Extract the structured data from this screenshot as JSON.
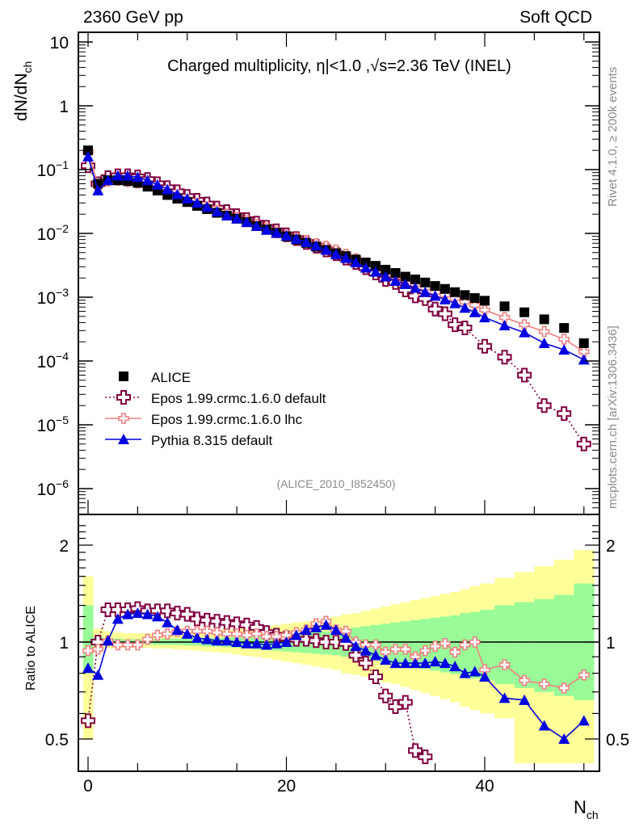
{
  "header": {
    "left": "2360 GeV pp",
    "right": "Soft QCD"
  },
  "side_labels": {
    "top": "Rivet 4.1.0, ≥ 200k events",
    "bottom": "mcplots.cern.ch [arXiv:1306.3436]"
  },
  "chart_data": [
    {
      "type": "scatter",
      "panel": "main",
      "title": "Charged multiplicity, |η|<1.0 ,√s=2.36 TeV (INEL)",
      "title_parts": {
        "pre": "Charged multiplicity, ",
        "eta": "η",
        "mid": "|<1.0 ,",
        "sqrt": "√",
        "post": "s=2.36 TeV (INEL)"
      },
      "analysis_tag": "(ALICE_2010_I852450)",
      "ylabel": "dN/dN",
      "ylabel_sub": "ch",
      "yscale": "log",
      "ylim": [
        5e-07,
        15
      ],
      "xlim": [
        -1,
        51
      ],
      "ytick_labels": [
        {
          "v": 10,
          "base": "10",
          "exp": ""
        },
        {
          "v": 1,
          "base": "1",
          "exp": ""
        },
        {
          "v": 0.1,
          "base": "10",
          "exp": "−1"
        },
        {
          "v": 0.01,
          "base": "10",
          "exp": "−2"
        },
        {
          "v": 0.001,
          "base": "10",
          "exp": "−3"
        },
        {
          "v": 0.0001,
          "base": "10",
          "exp": "−4"
        },
        {
          "v": 1e-05,
          "base": "10",
          "exp": "−5"
        },
        {
          "v": 1e-06,
          "base": "10",
          "exp": "−6"
        }
      ],
      "legend": {
        "placement": "lower-left",
        "entries": [
          {
            "name": "ALICE",
            "marker": "square",
            "color": "#000000",
            "line": "none"
          },
          {
            "name": "Epos 1.99.crmc.1.6.0 default",
            "marker": "open-cross",
            "color": "#800040",
            "line": "dotted"
          },
          {
            "name": "Epos 1.99.crmc.1.6.0 lhc",
            "marker": "open-cross-small",
            "color": "#f08080",
            "line": "solid"
          },
          {
            "name": "Pythia 8.315 default",
            "marker": "triangle",
            "color": "#0000e0",
            "line": "solid"
          }
        ]
      },
      "series": [
        {
          "name": "ALICE",
          "x": [
            0,
            1,
            2,
            3,
            4,
            5,
            6,
            7,
            8,
            9,
            10,
            11,
            12,
            13,
            14,
            15,
            16,
            17,
            18,
            19,
            20,
            21,
            22,
            23,
            24,
            25,
            26,
            27,
            28,
            29,
            30,
            31,
            32,
            33,
            34,
            35,
            36,
            37,
            38,
            39,
            40,
            42,
            44,
            46,
            48,
            50
          ],
          "y": [
            0.2,
            0.06,
            0.068,
            0.068,
            0.066,
            0.062,
            0.054,
            0.047,
            0.04,
            0.035,
            0.031,
            0.027,
            0.024,
            0.021,
            0.019,
            0.017,
            0.015,
            0.013,
            0.0115,
            0.0102,
            0.009,
            0.008,
            0.0071,
            0.0062,
            0.0055,
            0.0049,
            0.0044,
            0.0039,
            0.0035,
            0.0031,
            0.0027,
            0.0024,
            0.0021,
            0.0019,
            0.0017,
            0.0015,
            0.00135,
            0.0012,
            0.00108,
            0.00097,
            0.00088,
            0.00072,
            0.00058,
            0.00045,
            0.00033,
            0.00019
          ]
        },
        {
          "name": "Epos 1.99.crmc.1.6.0 default",
          "x": [
            0,
            1,
            2,
            3,
            4,
            5,
            6,
            7,
            8,
            9,
            10,
            11,
            12,
            13,
            14,
            15,
            16,
            17,
            18,
            19,
            20,
            21,
            22,
            23,
            24,
            25,
            26,
            27,
            28,
            29,
            30,
            31,
            32,
            33,
            34,
            35,
            36,
            37,
            38,
            40,
            42,
            44,
            46,
            48,
            50
          ],
          "y": [
            0.115,
            0.06,
            0.075,
            0.08,
            0.08,
            0.077,
            0.07,
            0.06,
            0.052,
            0.045,
            0.038,
            0.033,
            0.029,
            0.025,
            0.022,
            0.019,
            0.0165,
            0.0145,
            0.0125,
            0.011,
            0.0095,
            0.0083,
            0.0072,
            0.0063,
            0.0055,
            0.0048,
            0.0041,
            0.0035,
            0.0029,
            0.0024,
            0.0019,
            0.0017,
            0.0013,
            0.00105,
            0.00095,
            0.00065,
            0.00055,
            0.00037,
            0.00033,
            0.00017,
            0.000115,
            6e-05,
            2e-05,
            1.5e-05,
            5e-06
          ]
        },
        {
          "name": "Epos 1.99.crmc.1.6.0 lhc",
          "x": [
            0,
            1,
            2,
            3,
            4,
            5,
            6,
            7,
            8,
            9,
            10,
            11,
            12,
            13,
            14,
            15,
            16,
            17,
            18,
            19,
            20,
            21,
            22,
            23,
            24,
            25,
            26,
            27,
            28,
            29,
            30,
            31,
            32,
            33,
            34,
            35,
            36,
            37,
            38,
            39,
            40,
            42,
            44,
            46,
            48,
            50
          ],
          "y": [
            0.19,
            0.058,
            0.066,
            0.068,
            0.065,
            0.062,
            0.056,
            0.049,
            0.043,
            0.038,
            0.033,
            0.029,
            0.026,
            0.023,
            0.02,
            0.018,
            0.0158,
            0.0138,
            0.0121,
            0.0106,
            0.0094,
            0.0085,
            0.0077,
            0.0069,
            0.0063,
            0.0055,
            0.0047,
            0.004,
            0.0033,
            0.0029,
            0.0025,
            0.0021,
            0.0019,
            0.0016,
            0.0014,
            0.0012,
            0.00108,
            0.00095,
            0.00084,
            0.00075,
            0.00063,
            0.00048,
            0.00037,
            0.00029,
            0.00022,
            0.00014
          ]
        },
        {
          "name": "Pythia 8.315 default",
          "x": [
            0,
            1,
            2,
            3,
            4,
            5,
            6,
            7,
            8,
            9,
            10,
            11,
            12,
            13,
            14,
            15,
            16,
            17,
            18,
            19,
            20,
            21,
            22,
            23,
            24,
            25,
            26,
            27,
            28,
            29,
            30,
            31,
            32,
            33,
            34,
            35,
            36,
            37,
            38,
            39,
            40,
            42,
            44,
            46,
            48,
            50
          ],
          "y": [
            0.16,
            0.047,
            0.068,
            0.08,
            0.08,
            0.076,
            0.068,
            0.058,
            0.049,
            0.041,
            0.035,
            0.03,
            0.026,
            0.022,
            0.019,
            0.017,
            0.015,
            0.013,
            0.0113,
            0.0102,
            0.0092,
            0.0082,
            0.0073,
            0.0064,
            0.0055,
            0.0047,
            0.0041,
            0.0035,
            0.0029,
            0.0025,
            0.0021,
            0.0018,
            0.0016,
            0.0014,
            0.0012,
            0.00105,
            0.00092,
            0.0008,
            0.00068,
            0.00058,
            0.00048,
            0.00036,
            0.00028,
            0.00019,
            0.00015,
            0.000105
          ]
        }
      ]
    },
    {
      "type": "scatter",
      "panel": "ratio",
      "ylabel": "Ratio to ALICE",
      "xlabel": "N",
      "xlabel_sub": "ch",
      "yscale": "log",
      "ylim": [
        0.42,
        2.4
      ],
      "ytick_labels": [
        {
          "v": 2,
          "t": "2"
        },
        {
          "v": 1,
          "t": "1"
        },
        {
          "v": 0.5,
          "t": "0.5"
        }
      ],
      "xtick_labels": [
        {
          "v": 0,
          "t": "0"
        },
        {
          "v": 20,
          "t": "20"
        },
        {
          "v": 40,
          "t": "40"
        }
      ],
      "reference_line": 1,
      "bands": {
        "colors": {
          "inner": "#98fb98",
          "outer": "#ffff99"
        },
        "x_edges": [
          -0.5,
          0.5,
          1.5,
          2.5,
          3.5,
          4.5,
          5.5,
          6.5,
          7.5,
          8.5,
          9.5,
          10.5,
          11.5,
          12.5,
          13.5,
          14.5,
          15.5,
          16.5,
          17.5,
          18.5,
          19.5,
          20.5,
          21.5,
          22.5,
          23.5,
          24.5,
          25.5,
          26.5,
          27.5,
          28.5,
          29.5,
          30.5,
          31.5,
          32.5,
          33.5,
          34.5,
          35.5,
          36.5,
          37.5,
          38.5,
          39.5,
          41,
          43,
          45,
          47,
          49,
          51
        ],
        "inner_lo": [
          0.8,
          0.97,
          0.98,
          0.985,
          0.985,
          0.985,
          0.985,
          0.98,
          0.98,
          0.98,
          0.975,
          0.975,
          0.97,
          0.97,
          0.965,
          0.96,
          0.955,
          0.95,
          0.945,
          0.94,
          0.935,
          0.93,
          0.925,
          0.92,
          0.915,
          0.91,
          0.9,
          0.895,
          0.885,
          0.875,
          0.865,
          0.855,
          0.845,
          0.835,
          0.825,
          0.815,
          0.805,
          0.795,
          0.78,
          0.77,
          0.76,
          0.74,
          0.72,
          0.7,
          0.68,
          0.66
        ],
        "inner_hi": [
          1.3,
          1.04,
          1.03,
          1.025,
          1.02,
          1.02,
          1.02,
          1.025,
          1.025,
          1.025,
          1.025,
          1.03,
          1.03,
          1.03,
          1.035,
          1.04,
          1.04,
          1.045,
          1.05,
          1.055,
          1.06,
          1.065,
          1.07,
          1.075,
          1.08,
          1.09,
          1.1,
          1.11,
          1.12,
          1.13,
          1.14,
          1.15,
          1.16,
          1.17,
          1.18,
          1.19,
          1.2,
          1.21,
          1.23,
          1.24,
          1.26,
          1.3,
          1.33,
          1.36,
          1.4,
          1.52
        ],
        "outer_lo": [
          0.5,
          0.93,
          0.955,
          0.96,
          0.96,
          0.96,
          0.96,
          0.955,
          0.955,
          0.95,
          0.945,
          0.94,
          0.935,
          0.93,
          0.925,
          0.915,
          0.905,
          0.9,
          0.89,
          0.88,
          0.87,
          0.86,
          0.85,
          0.84,
          0.83,
          0.82,
          0.8,
          0.79,
          0.78,
          0.765,
          0.75,
          0.74,
          0.725,
          0.71,
          0.695,
          0.68,
          0.665,
          0.65,
          0.63,
          0.615,
          0.6,
          0.58,
          0.42,
          0.42,
          0.42,
          0.42
        ],
        "outer_hi": [
          1.6,
          1.1,
          1.08,
          1.07,
          1.065,
          1.065,
          1.065,
          1.07,
          1.07,
          1.07,
          1.075,
          1.08,
          1.085,
          1.09,
          1.095,
          1.1,
          1.11,
          1.115,
          1.12,
          1.13,
          1.14,
          1.15,
          1.16,
          1.17,
          1.18,
          1.2,
          1.22,
          1.23,
          1.25,
          1.27,
          1.29,
          1.31,
          1.33,
          1.35,
          1.37,
          1.39,
          1.41,
          1.43,
          1.46,
          1.49,
          1.52,
          1.58,
          1.65,
          1.72,
          1.8,
          1.93
        ]
      },
      "series": [
        {
          "name": "Epos 1.99.crmc.1.6.0 default",
          "x": [
            0,
            1,
            2,
            3,
            4,
            5,
            6,
            7,
            8,
            9,
            10,
            11,
            12,
            13,
            14,
            15,
            16,
            17,
            18,
            19,
            20,
            21,
            22,
            23,
            24,
            25,
            26,
            27,
            28,
            29,
            30,
            31,
            32,
            33,
            34
          ],
          "y": [
            0.57,
            1.0,
            1.26,
            1.26,
            1.26,
            1.27,
            1.25,
            1.25,
            1.25,
            1.23,
            1.22,
            1.18,
            1.17,
            1.16,
            1.15,
            1.14,
            1.13,
            1.11,
            1.07,
            1.05,
            1.03,
            1.02,
            1.02,
            1.01,
            1.0,
            1.0,
            0.99,
            0.91,
            0.86,
            0.78,
            0.68,
            0.63,
            0.65,
            0.46,
            0.44
          ]
        },
        {
          "name": "Epos 1.99.crmc.1.6.0 lhc",
          "x": [
            0,
            1,
            2,
            3,
            4,
            5,
            6,
            7,
            8,
            9,
            10,
            11,
            12,
            13,
            14,
            15,
            16,
            17,
            18,
            19,
            20,
            21,
            22,
            23,
            24,
            25,
            26,
            27,
            28,
            29,
            30,
            31,
            32,
            33,
            34,
            35,
            36,
            37,
            38,
            39,
            40,
            42,
            44,
            46,
            48,
            50
          ],
          "y": [
            0.94,
            0.95,
            1.01,
            0.98,
            0.98,
            0.98,
            1.02,
            1.05,
            1.06,
            1.08,
            1.08,
            1.08,
            1.08,
            1.07,
            1.06,
            1.06,
            1.05,
            1.06,
            1.04,
            1.04,
            1.05,
            1.07,
            1.09,
            1.14,
            1.16,
            1.09,
            1.08,
            1.0,
            0.98,
            0.98,
            0.93,
            0.95,
            0.95,
            0.9,
            0.94,
            0.97,
            0.99,
            0.93,
            0.98,
            1.0,
            0.82,
            0.85,
            0.76,
            0.74,
            0.72,
            0.79
          ]
        },
        {
          "name": "Pythia 8.315 default",
          "x": [
            0,
            1,
            2,
            3,
            4,
            5,
            6,
            7,
            8,
            9,
            10,
            11,
            12,
            13,
            14,
            15,
            16,
            17,
            18,
            19,
            20,
            21,
            22,
            23,
            24,
            25,
            26,
            27,
            28,
            29,
            30,
            31,
            32,
            33,
            34,
            35,
            36,
            37,
            38,
            39,
            40,
            42,
            44,
            46,
            48,
            50
          ],
          "y": [
            0.83,
            0.79,
            1.01,
            1.18,
            1.22,
            1.23,
            1.22,
            1.2,
            1.15,
            1.09,
            1.06,
            1.03,
            1.02,
            1.01,
            1.01,
            1.0,
            0.99,
            0.99,
            0.98,
            0.99,
            1.0,
            1.05,
            1.09,
            1.11,
            1.13,
            1.09,
            1.03,
            0.97,
            0.94,
            0.91,
            0.88,
            0.86,
            0.86,
            0.86,
            0.86,
            0.87,
            0.86,
            0.84,
            0.8,
            0.81,
            0.78,
            0.67,
            0.66,
            0.55,
            0.5,
            0.57
          ]
        }
      ]
    }
  ]
}
